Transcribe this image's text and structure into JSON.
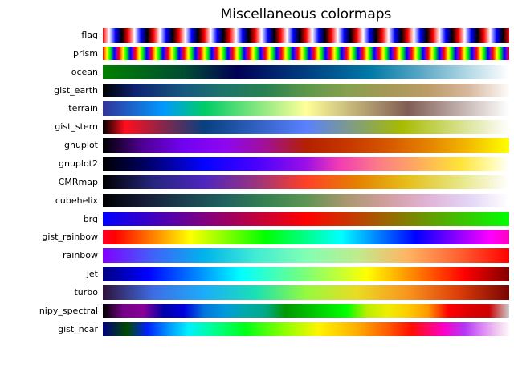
{
  "chart_data": {
    "type": "heatmap",
    "title": "Miscellaneous colormaps",
    "xlabel": "",
    "ylabel": "",
    "legend": "none",
    "grid": false,
    "description": "Horizontal gradient swatches of matplotlib miscellaneous colormaps, one labeled row per colormap, gradients run left (0.0) to right (1.0)",
    "rows": [
      {
        "label": "flag",
        "cycles": 16,
        "stops": [
          [
            0,
            "#ff0000"
          ],
          [
            25,
            "#ffffff"
          ],
          [
            50,
            "#0000ff"
          ],
          [
            75,
            "#000000"
          ],
          [
            100,
            "#ff0000"
          ]
        ]
      },
      {
        "label": "prism",
        "cycles": 25,
        "stops": [
          [
            0,
            "#ff0000"
          ],
          [
            25,
            "#ffff00"
          ],
          [
            45,
            "#00ff00"
          ],
          [
            70,
            "#0000ff"
          ],
          [
            85,
            "#8800cc"
          ],
          [
            100,
            "#ff0000"
          ]
        ]
      },
      {
        "label": "ocean",
        "stops": [
          [
            0,
            "#008000"
          ],
          [
            10,
            "#00661a"
          ],
          [
            20,
            "#004d33"
          ],
          [
            33,
            "#000054"
          ],
          [
            45,
            "#002d73"
          ],
          [
            55,
            "#00518c"
          ],
          [
            66,
            "#007ba8"
          ],
          [
            78,
            "#58a6c4"
          ],
          [
            90,
            "#b4d9e6"
          ],
          [
            100,
            "#ffffff"
          ]
        ]
      },
      {
        "label": "gist_earth",
        "stops": [
          [
            0,
            "#000000"
          ],
          [
            8,
            "#0d2271"
          ],
          [
            20,
            "#16597f"
          ],
          [
            30,
            "#1f7569"
          ],
          [
            40,
            "#288150"
          ],
          [
            50,
            "#5d9748"
          ],
          [
            60,
            "#86a04f"
          ],
          [
            70,
            "#a59856"
          ],
          [
            80,
            "#bb9c68"
          ],
          [
            90,
            "#d8b89e"
          ],
          [
            100,
            "#fdfcfb"
          ]
        ]
      },
      {
        "label": "terrain",
        "stops": [
          [
            0,
            "#333399"
          ],
          [
            15,
            "#0099ff"
          ],
          [
            25,
            "#00cc66"
          ],
          [
            50,
            "#ffff99"
          ],
          [
            75,
            "#805c54"
          ],
          [
            100,
            "#ffffff"
          ]
        ]
      },
      {
        "label": "gist_stern",
        "stops": [
          [
            0,
            "#000000"
          ],
          [
            5.5,
            "#ff0e1c"
          ],
          [
            10,
            "#c61a33"
          ],
          [
            17.5,
            "#662d59"
          ],
          [
            25,
            "#074080"
          ],
          [
            35,
            "#2859b3"
          ],
          [
            50,
            "#5a80ff"
          ],
          [
            60,
            "#7b9992"
          ],
          [
            73.5,
            "#a7bb00"
          ],
          [
            85,
            "#cdd96f"
          ],
          [
            100,
            "#ffffff"
          ]
        ]
      },
      {
        "label": "gnuplot",
        "stops": [
          [
            0,
            "#000000"
          ],
          [
            10,
            "#510096"
          ],
          [
            20,
            "#7202f2"
          ],
          [
            30,
            "#8c07f2"
          ],
          [
            40,
            "#a11096"
          ],
          [
            50,
            "#b42000"
          ],
          [
            60,
            "#c63700"
          ],
          [
            70,
            "#d55700"
          ],
          [
            80,
            "#e48300"
          ],
          [
            90,
            "#f2ba00"
          ],
          [
            100,
            "#ffff00"
          ]
        ]
      },
      {
        "label": "gnuplot2",
        "stops": [
          [
            0,
            "#000000"
          ],
          [
            10,
            "#00005e"
          ],
          [
            25,
            "#0503ff"
          ],
          [
            38,
            "#4a02fd"
          ],
          [
            50,
            "#9b0fe6"
          ],
          [
            58,
            "#f13bb4"
          ],
          [
            68,
            "#fb7d86"
          ],
          [
            78,
            "#feae5c"
          ],
          [
            88,
            "#ffe438"
          ],
          [
            96,
            "#fffbb0"
          ],
          [
            100,
            "#ffffff"
          ]
        ]
      },
      {
        "label": "CMRmap",
        "stops": [
          [
            0,
            "#000000"
          ],
          [
            12.5,
            "#262680"
          ],
          [
            25,
            "#4d26bf"
          ],
          [
            37.5,
            "#993380"
          ],
          [
            50,
            "#ff4026"
          ],
          [
            62.5,
            "#e68000"
          ],
          [
            75,
            "#e6bf1a"
          ],
          [
            87.5,
            "#e6e680"
          ],
          [
            100,
            "#ffffff"
          ]
        ]
      },
      {
        "label": "cubehelix",
        "stops": [
          [
            0,
            "#000000"
          ],
          [
            10,
            "#151b38"
          ],
          [
            20,
            "#1a3f4e"
          ],
          [
            30,
            "#20625f"
          ],
          [
            40,
            "#358150"
          ],
          [
            50,
            "#5e9454"
          ],
          [
            60,
            "#aa9770"
          ],
          [
            70,
            "#d19ea0"
          ],
          [
            80,
            "#e0b3d7"
          ],
          [
            90,
            "#e2d5f5"
          ],
          [
            100,
            "#ffffff"
          ]
        ]
      },
      {
        "label": "brg",
        "stops": [
          [
            0,
            "#0000ff"
          ],
          [
            25,
            "#800080"
          ],
          [
            50,
            "#ff0000"
          ],
          [
            75,
            "#808000"
          ],
          [
            100,
            "#00ff00"
          ]
        ]
      },
      {
        "label": "gist_rainbow",
        "stops": [
          [
            0,
            "#ff0029"
          ],
          [
            3,
            "#ff0000"
          ],
          [
            21.5,
            "#ffff00"
          ],
          [
            40,
            "#00ff00"
          ],
          [
            58.6,
            "#00ffff"
          ],
          [
            77,
            "#0000ff"
          ],
          [
            95.4,
            "#ff00ff"
          ],
          [
            100,
            "#ff00bf"
          ]
        ]
      },
      {
        "label": "rainbow",
        "stops": [
          [
            0,
            "#8000ff"
          ],
          [
            12.5,
            "#4062fa"
          ],
          [
            25,
            "#00b4ec"
          ],
          [
            37.5,
            "#40ecd4"
          ],
          [
            50,
            "#80ffb4"
          ],
          [
            62.5,
            "#bfec8e"
          ],
          [
            75,
            "#ffb462"
          ],
          [
            87.5,
            "#ff6232"
          ],
          [
            100,
            "#ff0000"
          ]
        ]
      },
      {
        "label": "jet",
        "stops": [
          [
            0,
            "#000080"
          ],
          [
            11,
            "#0000ff"
          ],
          [
            34,
            "#00ffff"
          ],
          [
            50,
            "#7dff77"
          ],
          [
            65,
            "#ffff00"
          ],
          [
            89,
            "#ff0000"
          ],
          [
            100,
            "#800000"
          ]
        ]
      },
      {
        "label": "turbo",
        "stops": [
          [
            0,
            "#30123b"
          ],
          [
            12.5,
            "#3e6de6"
          ],
          [
            25,
            "#1badfa"
          ],
          [
            37.5,
            "#18e1b5"
          ],
          [
            50,
            "#95fa3e"
          ],
          [
            62.5,
            "#eadb23"
          ],
          [
            75,
            "#f9951e"
          ],
          [
            87.5,
            "#dd3d08"
          ],
          [
            100,
            "#7a0403"
          ]
        ]
      },
      {
        "label": "nipy_spectral",
        "stops": [
          [
            0,
            "#000000"
          ],
          [
            5,
            "#770088"
          ],
          [
            10,
            "#880099"
          ],
          [
            15,
            "#0000aa"
          ],
          [
            20,
            "#0000dd"
          ],
          [
            25,
            "#0077dd"
          ],
          [
            30,
            "#0099dd"
          ],
          [
            35,
            "#00aaaa"
          ],
          [
            40,
            "#00aa88"
          ],
          [
            45,
            "#009900"
          ],
          [
            50,
            "#00bb00"
          ],
          [
            55,
            "#00dd00"
          ],
          [
            60,
            "#00ff00"
          ],
          [
            65,
            "#bbee00"
          ],
          [
            70,
            "#eeee00"
          ],
          [
            75,
            "#ffcc00"
          ],
          [
            80,
            "#ff9900"
          ],
          [
            85,
            "#ff0000"
          ],
          [
            90,
            "#dd0000"
          ],
          [
            95,
            "#cc0000"
          ],
          [
            100,
            "#cccccc"
          ]
        ]
      },
      {
        "label": "gist_ncar",
        "stops": [
          [
            0,
            "#000080"
          ],
          [
            6,
            "#004a00"
          ],
          [
            11,
            "#0021ff"
          ],
          [
            16,
            "#0092ff"
          ],
          [
            21,
            "#00f0ff"
          ],
          [
            28,
            "#00ff86"
          ],
          [
            35,
            "#00ff17"
          ],
          [
            45,
            "#91ff00"
          ],
          [
            53,
            "#fff400"
          ],
          [
            62,
            "#ffb300"
          ],
          [
            70,
            "#ff5c00"
          ],
          [
            76,
            "#ff0d00"
          ],
          [
            84,
            "#fb00cb"
          ],
          [
            89,
            "#b437f5"
          ],
          [
            93,
            "#d980f7"
          ],
          [
            97,
            "#f2c9f0"
          ],
          [
            100,
            "#fdf8fd"
          ]
        ]
      }
    ]
  }
}
